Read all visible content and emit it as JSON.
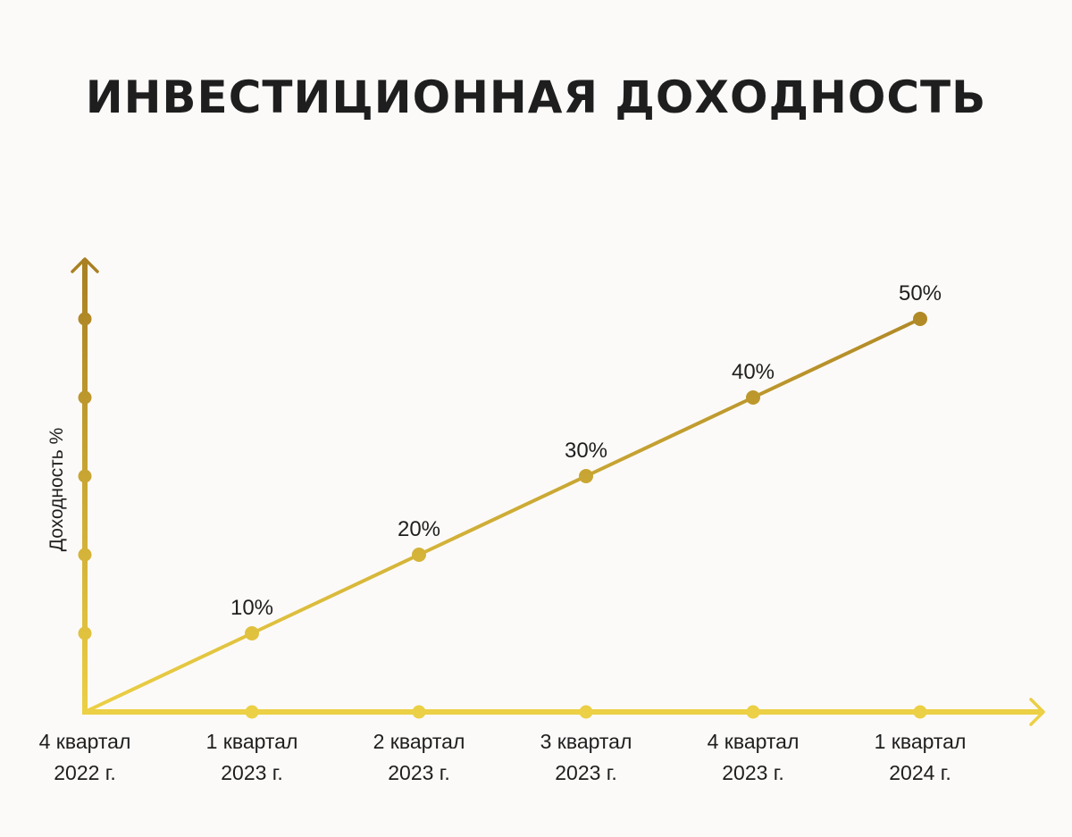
{
  "title": "ИНВЕСТИЦИОННАЯ ДОХОДНОСТЬ",
  "chart_data": {
    "type": "line",
    "title": "ИНВЕСТИЦИОННАЯ ДОХОДНОСТЬ",
    "ylabel": "Доходность %",
    "xlabel": "",
    "categories": [
      [
        "4 квартал",
        "2022 г."
      ],
      [
        "1 квартал",
        "2023 г."
      ],
      [
        "2 квартал",
        "2023 г."
      ],
      [
        "3 квартал",
        "2023 г."
      ],
      [
        "4 квартал",
        "2023 г."
      ],
      [
        "1 квартал",
        "2024 г."
      ]
    ],
    "values": [
      0,
      10,
      20,
      30,
      40,
      50
    ],
    "data_labels": [
      "",
      "10%",
      "20%",
      "30%",
      "40%",
      "50%"
    ],
    "yticks": [
      10,
      20,
      30,
      40,
      50
    ],
    "ylim": [
      0,
      60
    ],
    "grid": false,
    "colors": {
      "gradient_top": "#a87f22",
      "gradient_bottom": "#ecd045",
      "text": "#1e1e1e",
      "background": "#fcfaf8"
    }
  }
}
